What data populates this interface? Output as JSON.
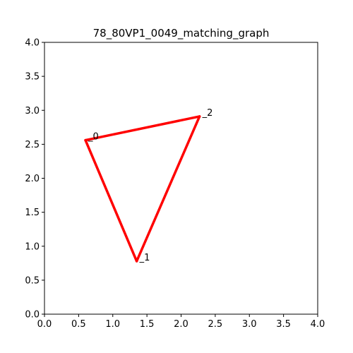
{
  "chart_data": {
    "type": "line",
    "title": "78_80VP1_0049_matching_graph",
    "xlabel": "",
    "ylabel": "",
    "xlim": [
      0.0,
      4.0
    ],
    "ylim": [
      0.0,
      4.0
    ],
    "xticks": [
      "0.0",
      "0.5",
      "1.0",
      "1.5",
      "2.0",
      "2.5",
      "3.0",
      "3.5",
      "4.0"
    ],
    "yticks": [
      "0.0",
      "0.5",
      "1.0",
      "1.5",
      "2.0",
      "2.5",
      "3.0",
      "3.5",
      "4.0"
    ],
    "grid": false,
    "edge_color": "#ff0000",
    "nodes": [
      {
        "label": "0",
        "x": 0.6,
        "y": 2.56
      },
      {
        "label": "1",
        "x": 1.35,
        "y": 0.78
      },
      {
        "label": "2",
        "x": 2.27,
        "y": 2.91
      }
    ],
    "edges": [
      [
        0,
        2
      ],
      [
        2,
        1
      ],
      [
        1,
        0
      ]
    ]
  }
}
